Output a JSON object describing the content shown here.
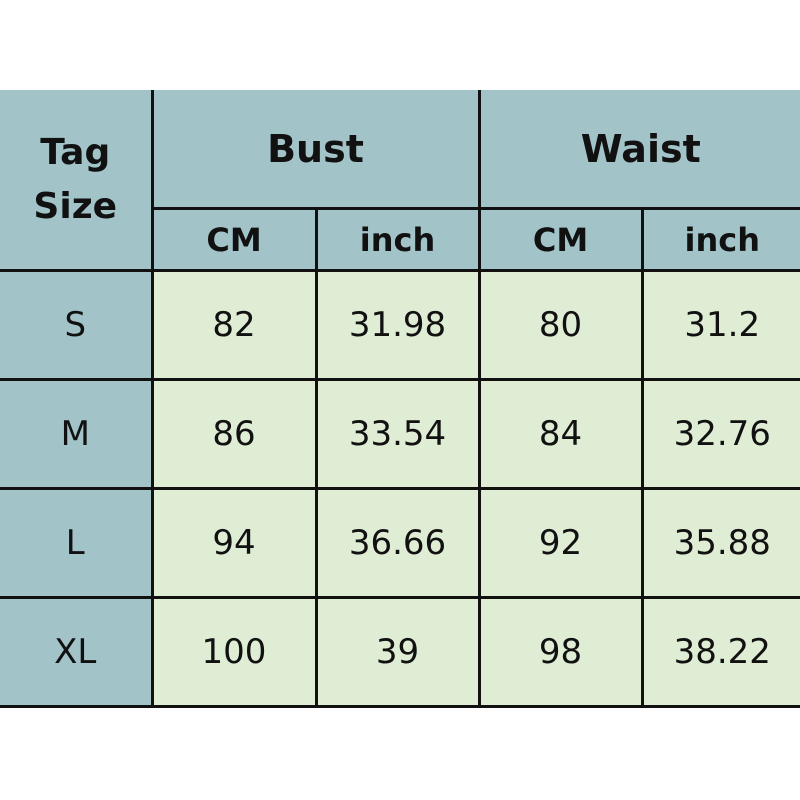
{
  "header": {
    "tag_size": "Tag Size",
    "groups": [
      "Bust",
      "Waist"
    ],
    "units": [
      "CM",
      "inch",
      "CM",
      "inch"
    ]
  },
  "rows": [
    {
      "size": "S",
      "bust_cm": "82",
      "bust_inch": "31.98",
      "waist_cm": "80",
      "waist_inch": "31.2"
    },
    {
      "size": "M",
      "bust_cm": "86",
      "bust_inch": "33.54",
      "waist_cm": "84",
      "waist_inch": "32.76"
    },
    {
      "size": "L",
      "bust_cm": "94",
      "bust_inch": "36.66",
      "waist_cm": "92",
      "waist_inch": "35.88"
    },
    {
      "size": "XL",
      "bust_cm": "100",
      "bust_inch": "39",
      "waist_cm": "98",
      "waist_inch": "38.22"
    }
  ],
  "colors": {
    "header": "#a2c4c9",
    "cell": "#e0edd5",
    "border": "#111111"
  }
}
